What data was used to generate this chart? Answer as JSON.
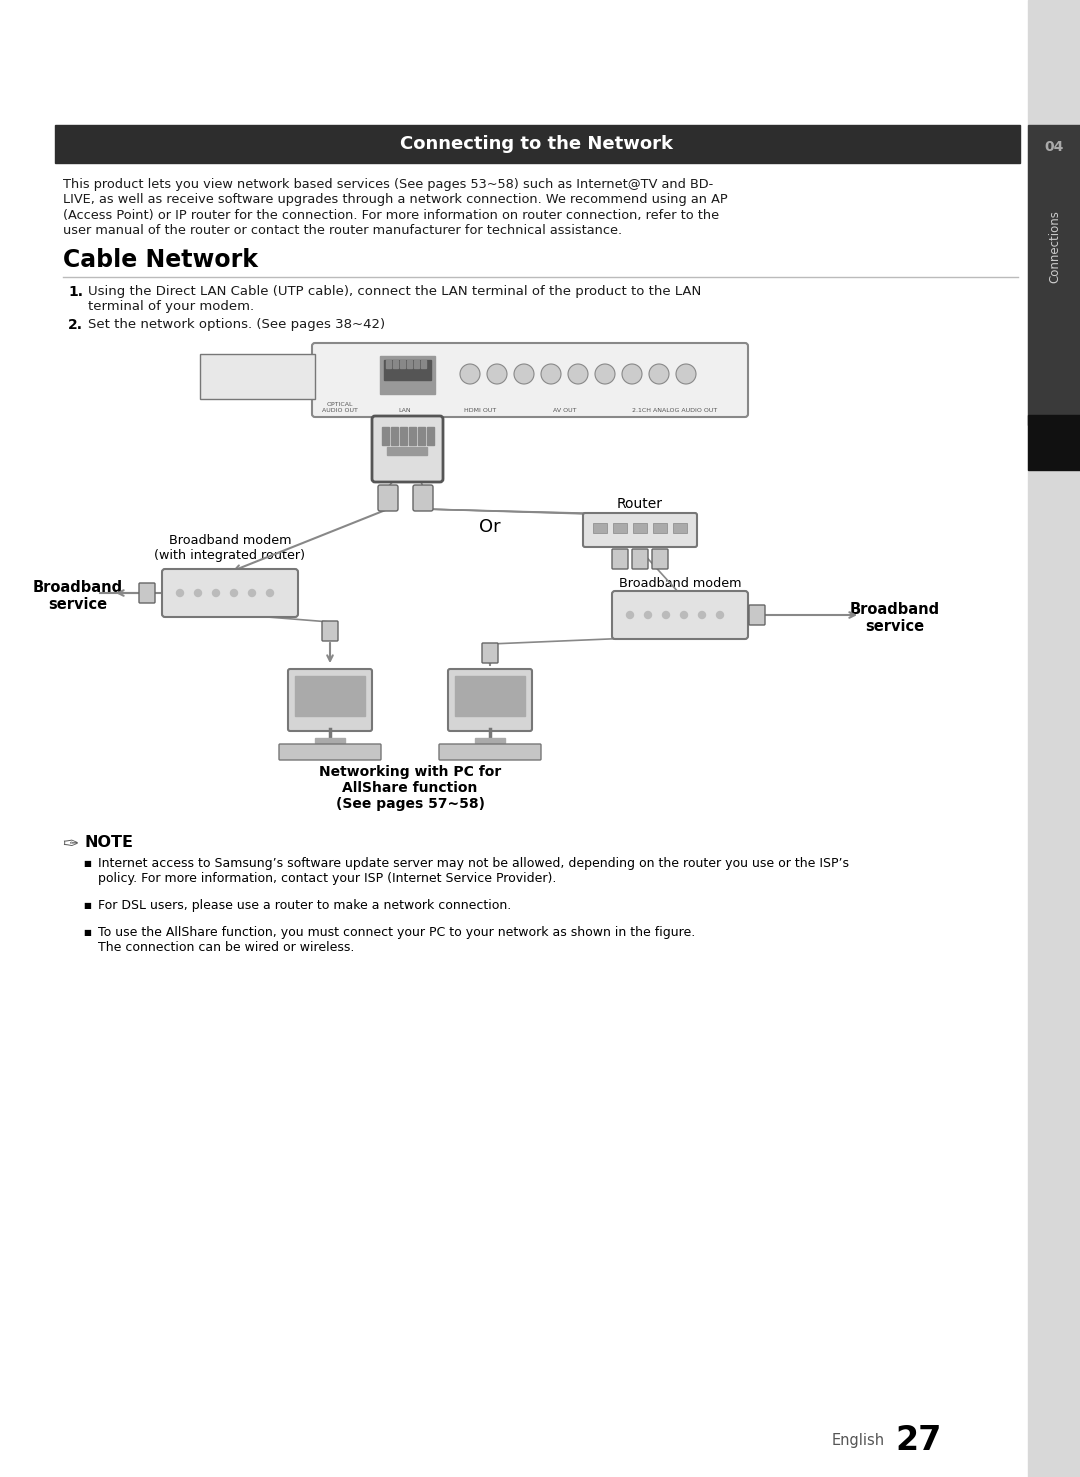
{
  "bg_color": "#ffffff",
  "header_bg": "#2d2d2d",
  "header_text": "Connecting to the Network",
  "header_text_color": "#ffffff",
  "body_text_color": "#1a1a1a",
  "intro_lines": [
    "This product lets you view network based services (See pages 53~58) such as Internet@TV and BD-",
    "LIVE, as well as receive software upgrades through a network connection. We recommend using an AP",
    "(Access Point) or IP router for the connection. For more information on router connection, refer to the",
    "user manual of the router or contact the router manufacturer for technical assistance."
  ],
  "section_title": "Cable Network",
  "step1_line1": "Using the Direct LAN Cable (UTP cable), connect the LAN terminal of the product to the LAN",
  "step1_line2": "terminal of your modem.",
  "step2_text": "Set the network options. (See pages 38~42)",
  "note_title": "NOTE",
  "note_bullets": [
    [
      "Internet access to Samsung’s software update server may not be allowed, depending on the router you use or the ISP’s",
      "policy. For more information, contact your ISP (Internet Service Provider)."
    ],
    [
      "For DSL users, please use a router to make a network connection."
    ],
    [
      "To use the AllShare function, you must connect your PC to your network as shown in the figure.",
      "The connection can be wired or wireless."
    ]
  ],
  "page_number": "27",
  "page_label": "English",
  "section_number": "04",
  "section_label": "Connections",
  "label_broadband_modem": "Broadband modem\n(with integrated router)",
  "label_broadband_service_left": "Broadband\nservice",
  "label_broadband_service_right": "Broadband\nservice",
  "label_router": "Router",
  "label_broadband_modem_right": "Broadband modem",
  "label_or": "Or",
  "label_networking": "Networking with PC for\nAllShare function\n(See pages 57~58)"
}
